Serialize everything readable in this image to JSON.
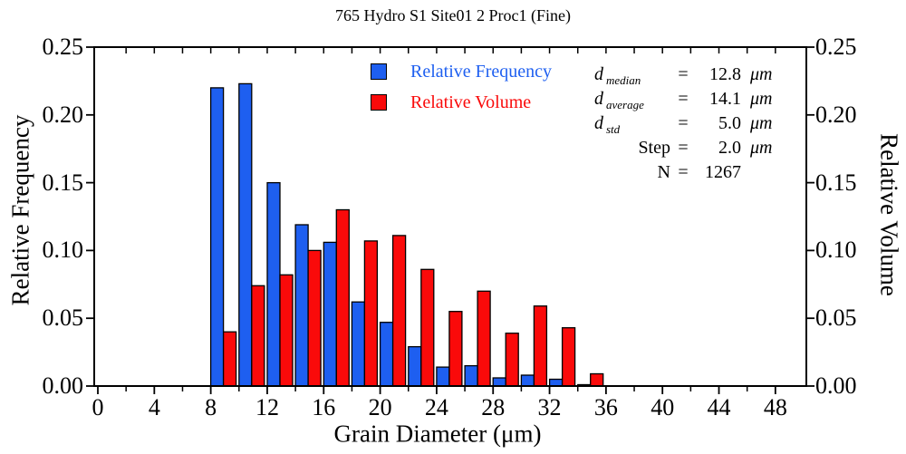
{
  "chart": {
    "title": "765 Hydro S1 Site01 2 Proc1 (Fine)",
    "x_axis": {
      "label": "Grain Diameter (μm)",
      "major_tick_values": [
        0,
        4,
        8,
        12,
        16,
        20,
        24,
        28,
        32,
        36,
        40,
        44,
        48
      ],
      "major_tick_labels": [
        "0",
        "4",
        "8",
        "12",
        "16",
        "20",
        "24",
        "28",
        "32",
        "36",
        "40",
        "44",
        "48"
      ],
      "minor_step": 2,
      "min": 0,
      "max": 50
    },
    "y_left": {
      "label": "Relative Frequency",
      "tick_values": [
        0,
        0.05,
        0.1,
        0.15,
        0.2,
        0.25
      ],
      "tick_labels": [
        "0.00",
        "0.05",
        "0.10",
        "0.15",
        "0.20",
        "0.25"
      ]
    },
    "y_right": {
      "label": "Relative Volume",
      "tick_values": [
        0,
        0.05,
        0.1,
        0.15,
        0.2,
        0.25
      ],
      "tick_labels": [
        "0.00",
        "0.05",
        "0.10",
        "0.15",
        "0.20",
        "0.25"
      ]
    },
    "legend": {
      "items": [
        {
          "label": "Relative Frequency",
          "color": "#1E5FF0"
        },
        {
          "label": "Relative Volume",
          "color": "#FA0A0A"
        }
      ]
    },
    "stats": {
      "rows": [
        {
          "var": "d",
          "sub": "median",
          "eq": "=",
          "value": "12.8",
          "unit": "μm"
        },
        {
          "var": "d",
          "sub": "average",
          "eq": "=",
          "value": "14.1",
          "unit": "μm"
        },
        {
          "var": "d",
          "sub": "std",
          "eq": "=",
          "value": "5.0",
          "unit": "μm"
        },
        {
          "var": "Step",
          "sub": "",
          "eq": "=",
          "value": "2.0",
          "unit": "μm"
        },
        {
          "var": "N",
          "sub": "",
          "eq": "=",
          "value": "1267",
          "unit": ""
        }
      ]
    }
  },
  "chart_data": {
    "type": "bar",
    "title": "765 Hydro S1 Site01 2 Proc1 (Fine)",
    "xlabel": "Grain Diameter (μm)",
    "ylabel_left": "Relative Frequency",
    "ylabel_right": "Relative Volume",
    "bin_width_um": 2,
    "bins_start": [
      8,
      10,
      12,
      14,
      16,
      18,
      20,
      22,
      24,
      26,
      28,
      30,
      32,
      34
    ],
    "categories": [
      "8-10",
      "10-12",
      "12-14",
      "14-16",
      "16-18",
      "18-20",
      "20-22",
      "22-24",
      "24-26",
      "26-28",
      "28-30",
      "30-32",
      "32-34",
      "34-36"
    ],
    "series": [
      {
        "name": "Relative Frequency",
        "color": "#1E5FF0",
        "values": [
          0.22,
          0.223,
          0.15,
          0.119,
          0.106,
          0.062,
          0.047,
          0.029,
          0.014,
          0.015,
          0.006,
          0.008,
          0.005,
          0.001
        ]
      },
      {
        "name": "Relative Volume",
        "color": "#FA0A0A",
        "values": [
          0.04,
          0.074,
          0.082,
          0.1,
          0.13,
          0.107,
          0.111,
          0.086,
          0.055,
          0.07,
          0.039,
          0.059,
          0.043,
          0.009
        ]
      }
    ],
    "xlim": [
      0,
      50
    ],
    "ylim": [
      0,
      0.25
    ],
    "grid": false,
    "legend_position": "top-center-inside",
    "annotations": {
      "d_median_um": 12.8,
      "d_average_um": 14.1,
      "d_std_um": 5.0,
      "step_um": 2.0,
      "N": 1267
    }
  }
}
